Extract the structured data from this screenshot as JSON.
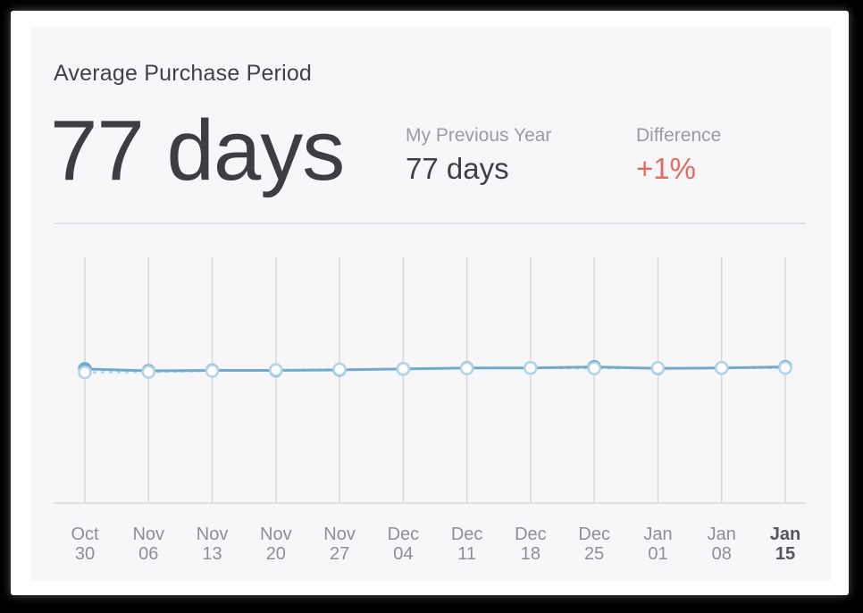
{
  "card": {
    "title": "Average Purchase Period",
    "headline_value": "77 days",
    "previous_year_label": "My Previous Year",
    "previous_year_value": "77 days",
    "difference_label": "Difference",
    "difference_value": "+1%"
  },
  "colors": {
    "line_current": "#72aacd",
    "line_previous": "#b3d3e6",
    "difference": "#e46a5c",
    "gridline": "#d9d9dc"
  },
  "chart_data": {
    "type": "line",
    "categories": [
      [
        "Oct",
        "30"
      ],
      [
        "Nov",
        "06"
      ],
      [
        "Nov",
        "13"
      ],
      [
        "Nov",
        "20"
      ],
      [
        "Nov",
        "27"
      ],
      [
        "Dec",
        "04"
      ],
      [
        "Dec",
        "11"
      ],
      [
        "Dec",
        "18"
      ],
      [
        "Dec",
        "25"
      ],
      [
        "Jan",
        "01"
      ],
      [
        "Jan",
        "08"
      ],
      [
        "Jan",
        "15"
      ]
    ],
    "highlighted_category_index": 11,
    "series": [
      {
        "values": [
          77.3,
          76.9,
          77.0,
          77.0,
          77.1,
          77.3,
          77.5,
          77.5,
          77.7,
          77.4,
          77.5,
          77.7
        ]
      },
      {
        "values": [
          76.6,
          76.7,
          76.9,
          77.1,
          77.2,
          77.3,
          77.4,
          77.5,
          77.4,
          77.5,
          77.5,
          77.5
        ]
      }
    ],
    "ylim": [
      50,
      100
    ],
    "grid": "vertical"
  }
}
